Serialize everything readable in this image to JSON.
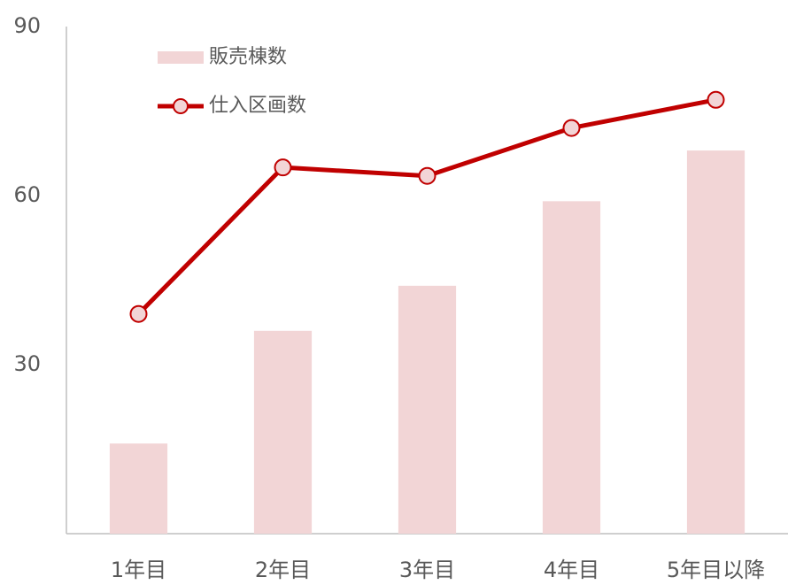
{
  "chart_data": {
    "type": "combo",
    "categories": [
      "1年目",
      "2年目",
      "3年目",
      "4年目",
      "5年目以降"
    ],
    "series": [
      {
        "name": "販売棟数",
        "type": "bar",
        "color": "#f2d5d6",
        "values": [
          16,
          36,
          44,
          59,
          68
        ]
      },
      {
        "name": "仕入区画数",
        "type": "line",
        "color": "#c00000",
        "values": [
          39,
          65,
          63.5,
          72,
          77
        ]
      }
    ],
    "ylim": [
      0,
      90
    ],
    "yticks": [
      30,
      60,
      90
    ],
    "grid": false,
    "legend": "top-left"
  }
}
